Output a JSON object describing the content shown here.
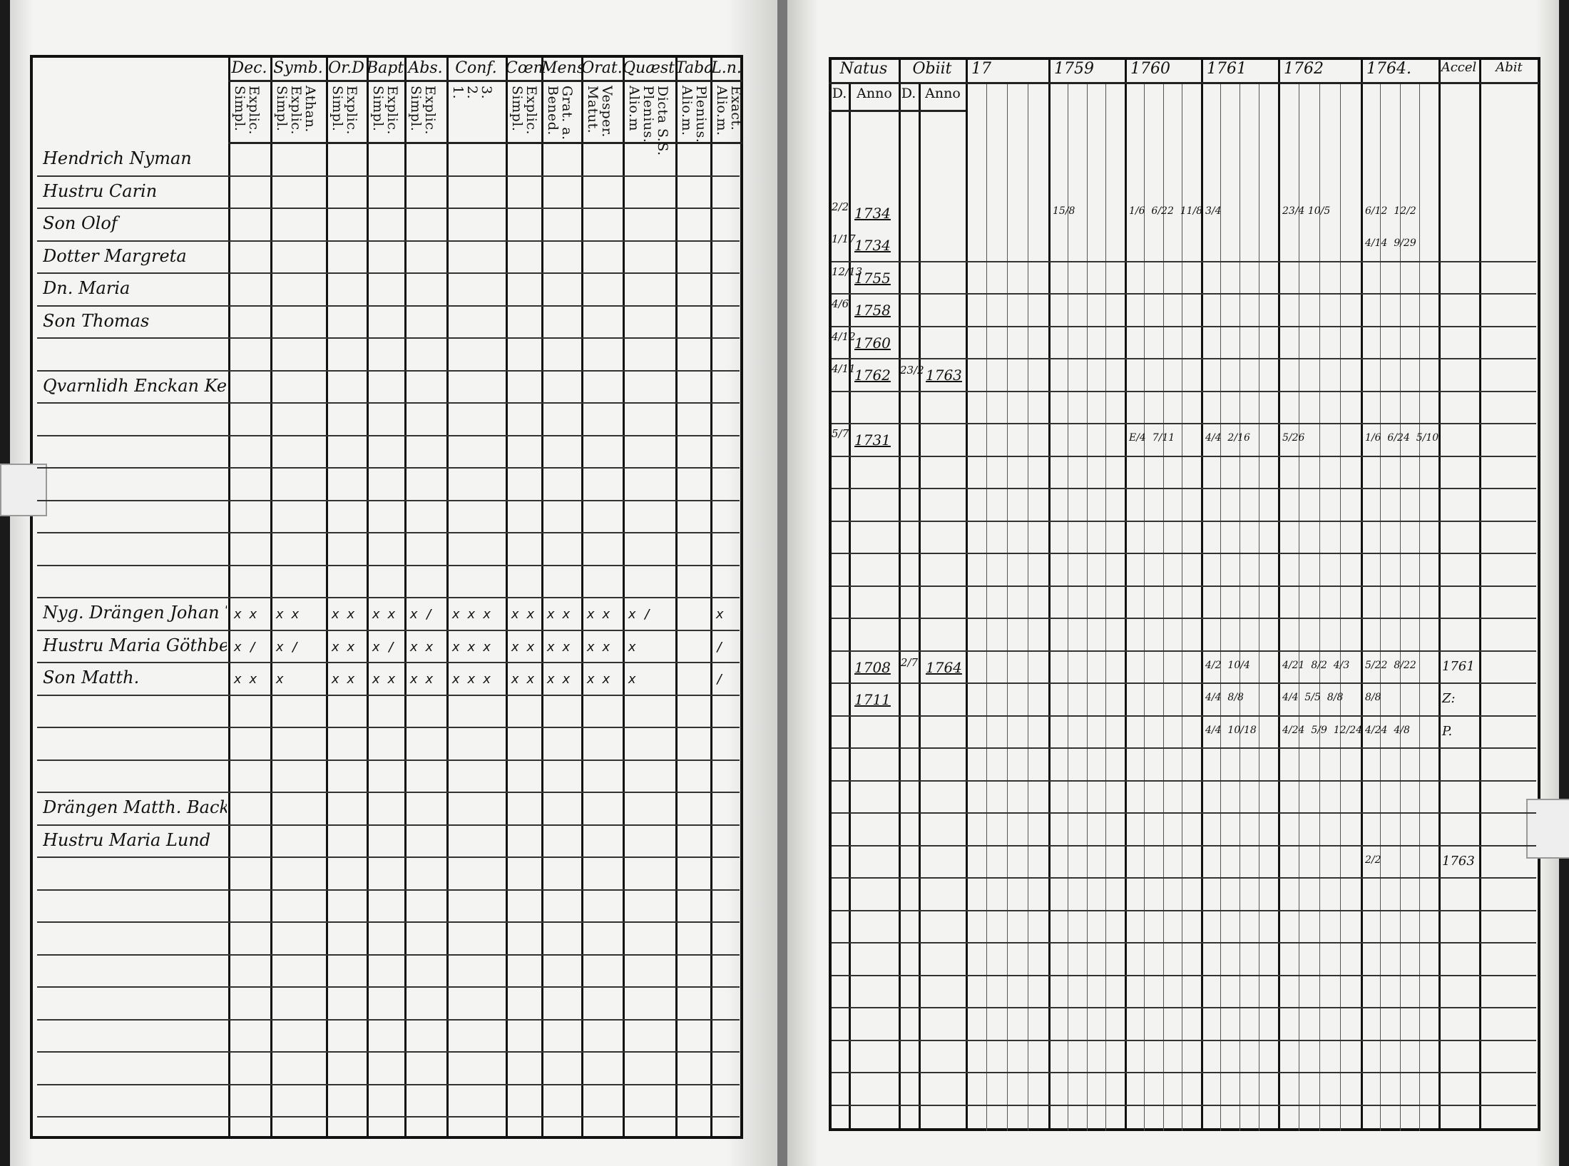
{
  "left_page": {
    "headers": [
      {
        "title": "Dec.",
        "sub": "Explic.\nSimpl."
      },
      {
        "title": "Symb.",
        "sub": "Athan.\nExplic.\nSimpl."
      },
      {
        "title": "Or.D",
        "sub": "Explic.\nSimpl."
      },
      {
        "title": "Bapt.",
        "sub": "Explic.\nSimpl."
      },
      {
        "title": "Abs.",
        "sub": "Explic.\nSimpl."
      },
      {
        "title": "Conf.",
        "sub": "3.\n2.\n1."
      },
      {
        "title": "Cœn.D",
        "sub": "Explic.\nSimpl."
      },
      {
        "title": "Mens.",
        "sub": "Grat. a.\nBened."
      },
      {
        "title": "Orat.",
        "sub": "Vesper.\nMatut."
      },
      {
        "title": "Quæst.",
        "sub": "Dicta S.S.\nPlenius.\nAlio.m"
      },
      {
        "title": "Tabæ",
        "sub": "Plenius.\nAlio.m."
      },
      {
        "title": "L.n.",
        "sub": "Exact.\nAlio.m."
      }
    ],
    "records": [
      {
        "name": "Hendrich Nyman",
        "marks": [
          "",
          "",
          "",
          "",
          "",
          "",
          "",
          "",
          "",
          "",
          "",
          ""
        ]
      },
      {
        "name": "Hustru Carin",
        "marks": [
          "",
          "",
          "",
          "",
          "",
          "",
          "",
          "",
          "",
          "",
          "",
          ""
        ]
      },
      {
        "name": "Son Olof",
        "marks": [
          "",
          "",
          "",
          "",
          "",
          "",
          "",
          "",
          "",
          "",
          "",
          ""
        ]
      },
      {
        "name": "Dotter Margreta",
        "marks": [
          "",
          "",
          "",
          "",
          "",
          "",
          "",
          "",
          "",
          "",
          "",
          ""
        ]
      },
      {
        "name": "Dn. Maria",
        "marks": [
          "",
          "",
          "",
          "",
          "",
          "",
          "",
          "",
          "",
          "",
          "",
          ""
        ]
      },
      {
        "name": "Son Thomas",
        "marks": [
          "",
          "",
          "",
          "",
          "",
          "",
          "",
          "",
          "",
          "",
          "",
          ""
        ]
      },
      {
        "name": "Qvarnlidh Enckan Kerstin",
        "marks": [
          "",
          "",
          "",
          "",
          "",
          "",
          "",
          "",
          "",
          "",
          "",
          ""
        ]
      },
      {
        "name": "Nyg. Drängen Johan Törn",
        "marks": [
          "x x",
          "x x",
          "x x",
          "x x",
          "x /",
          "x x x",
          "x x",
          "x x",
          "x x",
          "x /",
          "",
          "x"
        ]
      },
      {
        "name": "Hustru Maria Göthberg",
        "marks": [
          "x /",
          "x /",
          "x x",
          "x /",
          "x x",
          "x x x",
          "x x",
          "x x",
          "x x",
          "x",
          "",
          "/"
        ]
      },
      {
        "name": "Son Matth.",
        "marks": [
          "x x",
          "x",
          "x x",
          "x x",
          "x x",
          "x x x",
          "x x",
          "x x",
          "x x",
          "x",
          "",
          "/"
        ]
      },
      {
        "name": "Drängen Matth. Backman",
        "marks": [
          "",
          "",
          "",
          "",
          "",
          "",
          "",
          "",
          "",
          "",
          "",
          ""
        ]
      },
      {
        "name": "Hustru Maria Lund",
        "marks": [
          "",
          "",
          "",
          "",
          "",
          "",
          "",
          "",
          "",
          "",
          "",
          ""
        ]
      }
    ]
  },
  "right_page": {
    "natus": "Natus",
    "obiit": "Obiit",
    "d_label": "D.",
    "anno_label": "Anno",
    "years": [
      "17",
      "1759",
      "1760",
      "1761",
      "1762",
      "1764."
    ],
    "accel": "Accel",
    "abit": "Abit",
    "records": [
      {
        "natus_d": "2/2",
        "natus_anno": "1734",
        "obiit_d": "",
        "obiit_anno": "",
        "year_marks": [
          "",
          "15/8",
          "1/6  6/22  11/8",
          "3/4",
          "23/4 10/5",
          "6/12  12/2"
        ],
        "accel": ""
      },
      {
        "natus_d": "1/17",
        "natus_anno": "1734",
        "obiit_d": "",
        "obiit_anno": "",
        "year_marks": [
          "",
          "",
          "",
          "",
          "",
          "4/14  9/29"
        ],
        "accel": ""
      },
      {
        "natus_d": "12/13",
        "natus_anno": "1755",
        "obiit_d": "",
        "obiit_anno": "",
        "year_marks": [
          "",
          "",
          "",
          "",
          "",
          ""
        ],
        "accel": ""
      },
      {
        "natus_d": "4/6",
        "natus_anno": "1758",
        "obiit_d": "",
        "obiit_anno": "",
        "year_marks": [
          "",
          "",
          "",
          "",
          "",
          ""
        ],
        "accel": ""
      },
      {
        "natus_d": "4/12",
        "natus_anno": "1760",
        "obiit_d": "",
        "obiit_anno": "",
        "year_marks": [
          "",
          "",
          "",
          "",
          "",
          ""
        ],
        "accel": ""
      },
      {
        "natus_d": "4/11",
        "natus_anno": "1762",
        "obiit_d": "23/2",
        "obiit_anno": "1763",
        "year_marks": [
          "",
          "",
          "",
          "",
          "",
          ""
        ],
        "accel": ""
      },
      {
        "natus_d": "5/7",
        "natus_anno": "1731",
        "obiit_d": "",
        "obiit_anno": "",
        "year_marks": [
          "",
          "",
          "E/4  7/11",
          "4/4  2/16",
          "5/26",
          "1/6  6/24  5/10"
        ],
        "accel": ""
      },
      {
        "natus_d": "",
        "natus_anno": "1708",
        "obiit_d": "2/7",
        "obiit_anno": "1764",
        "year_marks": [
          "",
          "",
          "",
          "4/2  10/4",
          "4/21  8/2  4/3",
          "5/22  8/22"
        ],
        "accel": "1761"
      },
      {
        "natus_d": "",
        "natus_anno": "1711",
        "obiit_d": "",
        "obiit_anno": "",
        "year_marks": [
          "",
          "",
          "",
          "4/4  8/8",
          "4/4  5/5  8/8",
          "8/8"
        ],
        "accel": "Z:"
      },
      {
        "natus_d": "",
        "natus_anno": "",
        "obiit_d": "",
        "obiit_anno": "",
        "year_marks": [
          "",
          "",
          "",
          "4/4  10/18",
          "4/24  5/9  12/24",
          "4/24  4/8"
        ],
        "accel": "P."
      },
      {
        "natus_d": "",
        "natus_anno": "",
        "obiit_d": "",
        "obiit_anno": "",
        "year_marks": [
          "",
          "",
          "",
          "",
          "",
          "2/2"
        ],
        "accel": "1763"
      },
      {
        "natus_d": "",
        "natus_anno": "",
        "obiit_d": "",
        "obiit_anno": "",
        "year_marks": [
          "",
          "",
          "",
          "",
          "",
          ""
        ],
        "accel": ""
      }
    ]
  }
}
